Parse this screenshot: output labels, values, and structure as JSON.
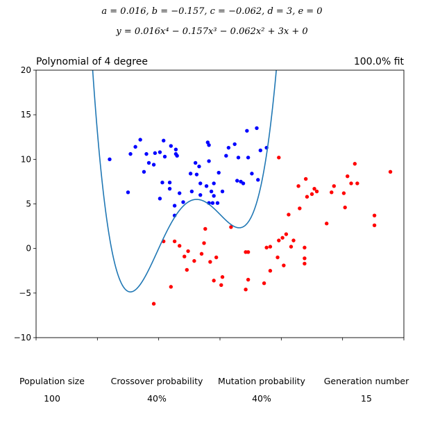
{
  "equation": {
    "coefficients": "a = 0.016, b = −0.157, c = −0.062, d = 3, e = 0",
    "formula": "y = 0.016x⁴ − 0.157x³ − 0.062x² + 3x + 0"
  },
  "chart_data": {
    "type": "scatter",
    "title": "Polynomial of 4 degree",
    "subtitle": "100.0% fit",
    "xlim": [
      -10,
      20
    ],
    "ylim": [
      -10,
      20
    ],
    "xticks": [
      -10,
      -5,
      0,
      5,
      10,
      15,
      20
    ],
    "yticks": [
      -10,
      -5,
      0,
      5,
      10,
      15,
      20
    ],
    "xlabel": "",
    "ylabel": "",
    "grid": false,
    "colors": {
      "series_a": "#0000ff",
      "series_b": "#ff0000",
      "curve": "#1f77b4"
    },
    "curve": {
      "coefficients": [
        0.016,
        -0.157,
        -0.062,
        3,
        0
      ]
    },
    "series": [
      {
        "points": [
          [
            -4.0,
            10.0
          ],
          [
            -2.5,
            6.3
          ],
          [
            -2.3,
            10.6
          ],
          [
            -1.9,
            11.4
          ],
          [
            -1.5,
            12.2
          ],
          [
            -1.2,
            8.6
          ],
          [
            -1.0,
            10.6
          ],
          [
            -0.8,
            9.6
          ],
          [
            -0.4,
            9.4
          ],
          [
            -0.3,
            10.7
          ],
          [
            0.1,
            5.6
          ],
          [
            0.1,
            10.8
          ],
          [
            0.3,
            7.4
          ],
          [
            0.4,
            12.1
          ],
          [
            0.5,
            10.3
          ],
          [
            0.9,
            6.7
          ],
          [
            0.9,
            7.4
          ],
          [
            1.0,
            11.5
          ],
          [
            1.3,
            4.8
          ],
          [
            1.3,
            3.7
          ],
          [
            1.4,
            11.1
          ],
          [
            1.4,
            10.6
          ],
          [
            1.5,
            10.4
          ],
          [
            1.7,
            6.2
          ],
          [
            2.0,
            5.2
          ],
          [
            2.6,
            8.4
          ],
          [
            2.7,
            6.4
          ],
          [
            3.0,
            9.6
          ],
          [
            3.1,
            8.3
          ],
          [
            3.3,
            9.2
          ],
          [
            3.4,
            7.3
          ],
          [
            3.4,
            6.0
          ],
          [
            3.9,
            7.0
          ],
          [
            4.0,
            11.9
          ],
          [
            4.1,
            11.6
          ],
          [
            4.1,
            9.8
          ],
          [
            4.1,
            5.1
          ],
          [
            4.3,
            6.4
          ],
          [
            4.4,
            5.1
          ],
          [
            4.5,
            5.9
          ],
          [
            4.5,
            7.3
          ],
          [
            4.8,
            5.1
          ],
          [
            4.9,
            8.5
          ],
          [
            5.2,
            6.4
          ],
          [
            5.5,
            10.4
          ],
          [
            5.7,
            11.3
          ],
          [
            6.2,
            11.7
          ],
          [
            6.4,
            7.6
          ],
          [
            6.5,
            10.2
          ],
          [
            6.7,
            7.5
          ],
          [
            6.9,
            7.3
          ],
          [
            7.2,
            13.2
          ],
          [
            7.3,
            10.2
          ],
          [
            7.6,
            8.4
          ],
          [
            8.0,
            13.5
          ],
          [
            8.1,
            7.7
          ],
          [
            8.3,
            11.0
          ],
          [
            8.8,
            11.3
          ]
        ]
      },
      {
        "points": [
          [
            -0.4,
            -6.2
          ],
          [
            0.4,
            0.8
          ],
          [
            1.0,
            -4.3
          ],
          [
            1.3,
            0.8
          ],
          [
            1.7,
            0.3
          ],
          [
            2.1,
            -0.9
          ],
          [
            2.3,
            -2.4
          ],
          [
            2.4,
            -0.3
          ],
          [
            2.9,
            -1.4
          ],
          [
            3.5,
            -0.6
          ],
          [
            3.7,
            0.6
          ],
          [
            3.8,
            2.2
          ],
          [
            4.2,
            -1.5
          ],
          [
            4.5,
            -3.6
          ],
          [
            4.7,
            -1.0
          ],
          [
            5.1,
            -4.1
          ],
          [
            5.2,
            -3.2
          ],
          [
            5.9,
            2.4
          ],
          [
            7.1,
            -0.4
          ],
          [
            7.1,
            -4.6
          ],
          [
            7.3,
            -0.4
          ],
          [
            7.3,
            -3.5
          ],
          [
            8.6,
            -3.9
          ],
          [
            8.8,
            0.1
          ],
          [
            9.1,
            0.2
          ],
          [
            9.1,
            -2.5
          ],
          [
            9.7,
            -1.0
          ],
          [
            9.8,
            10.2
          ],
          [
            9.8,
            0.9
          ],
          [
            10.1,
            1.2
          ],
          [
            10.2,
            -1.9
          ],
          [
            10.4,
            1.6
          ],
          [
            10.6,
            3.8
          ],
          [
            10.8,
            0.2
          ],
          [
            11.0,
            0.9
          ],
          [
            11.4,
            7.0
          ],
          [
            11.5,
            4.5
          ],
          [
            11.9,
            -1.1
          ],
          [
            11.9,
            0.1
          ],
          [
            11.9,
            -1.7
          ],
          [
            12.0,
            7.8
          ],
          [
            12.1,
            5.8
          ],
          [
            12.5,
            6.1
          ],
          [
            12.7,
            6.7
          ],
          [
            12.9,
            6.4
          ],
          [
            13.7,
            2.8
          ],
          [
            14.1,
            6.3
          ],
          [
            14.3,
            7.0
          ],
          [
            15.1,
            6.2
          ],
          [
            15.2,
            4.6
          ],
          [
            15.4,
            8.1
          ],
          [
            15.7,
            7.3
          ],
          [
            16.0,
            9.5
          ],
          [
            16.2,
            7.3
          ],
          [
            17.6,
            2.6
          ],
          [
            17.6,
            3.7
          ],
          [
            18.9,
            8.6
          ]
        ]
      }
    ]
  },
  "stats": [
    {
      "label": "Population size",
      "value": "100"
    },
    {
      "label": "Crossover probability",
      "value": "40%"
    },
    {
      "label": "Mutation probability",
      "value": "40%"
    },
    {
      "label": "Generation number",
      "value": "15"
    }
  ]
}
